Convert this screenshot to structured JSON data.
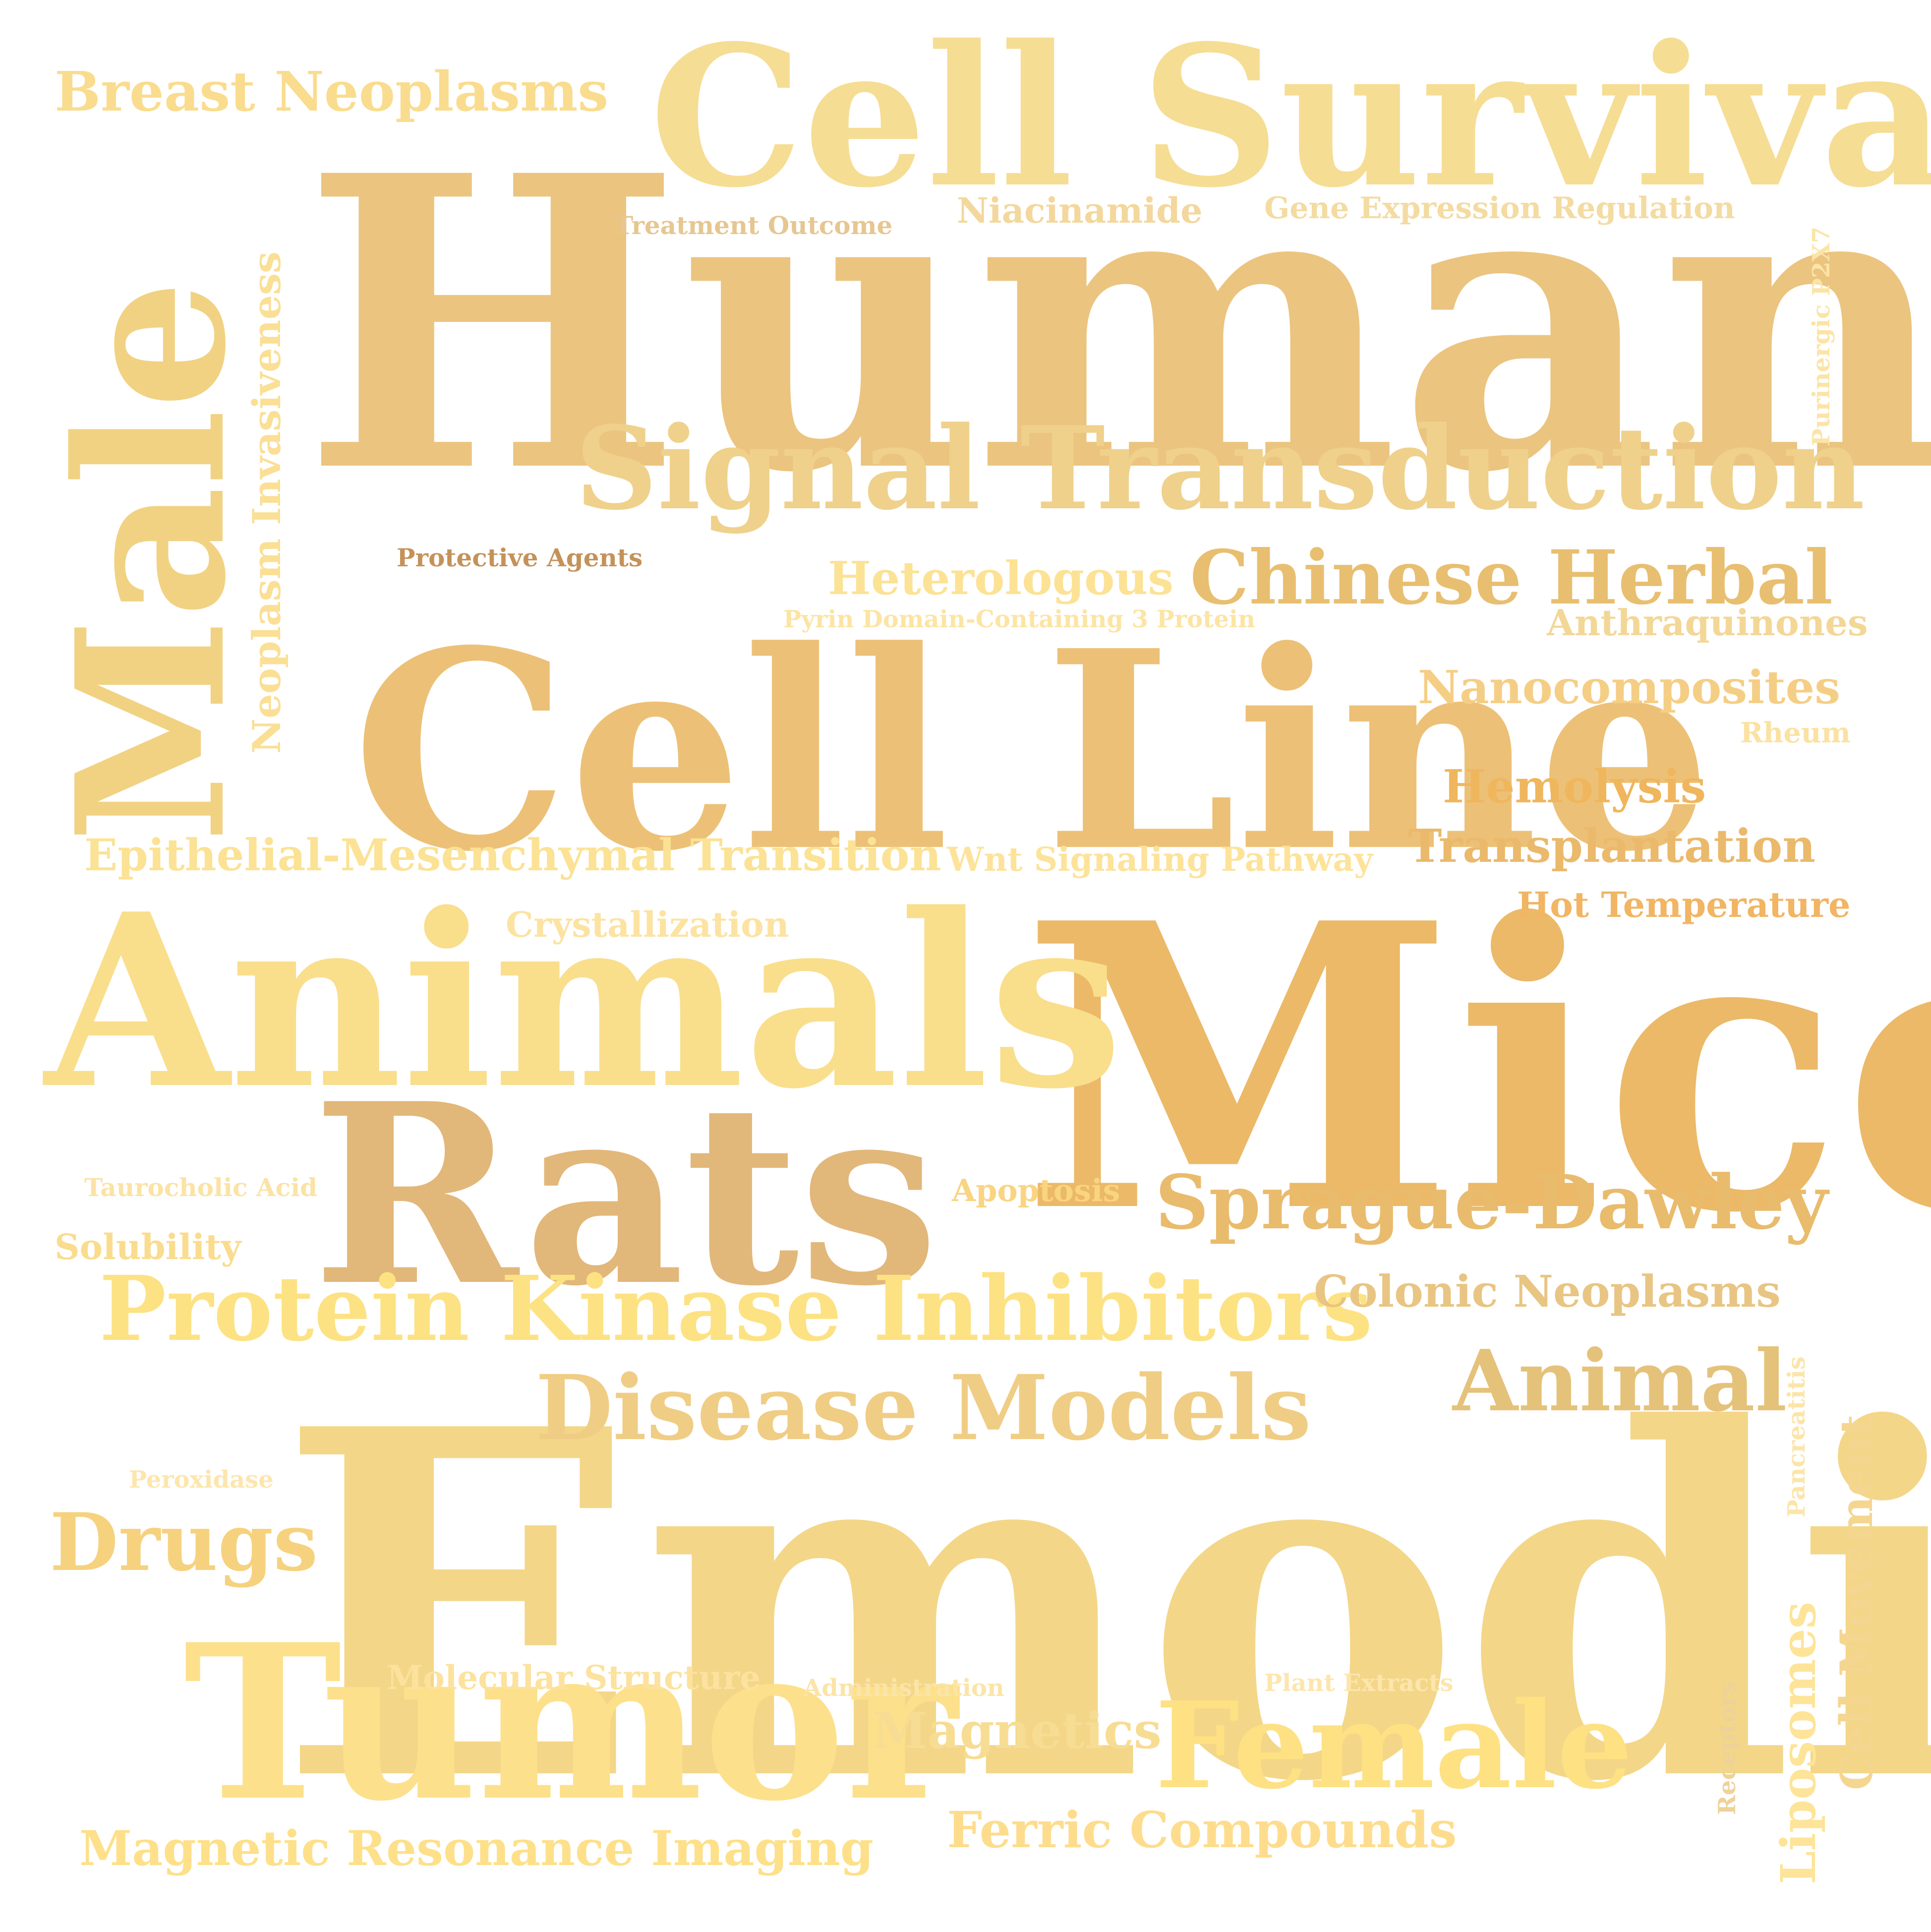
{
  "word_cloud": {
    "words": [
      {
        "text": "Emodin",
        "color": "#f3d688"
      },
      {
        "text": "Humans",
        "color": "#ebc47f"
      },
      {
        "text": "Mice",
        "color": "#ebb968"
      },
      {
        "text": "Cell Line",
        "color": "#ecc177"
      },
      {
        "text": "Animals",
        "color": "#f9de8c"
      },
      {
        "text": "Rats",
        "color": "#e2b77a"
      },
      {
        "text": "Tumor",
        "color": "#fde08b"
      },
      {
        "text": "Cell Survival",
        "color": "#f6dd94"
      },
      {
        "text": "Male",
        "color": "#f1d283"
      },
      {
        "text": "Signal Transduction",
        "color": "#efd18c"
      },
      {
        "text": "Protein Kinase Inhibitors",
        "color": "#fde283"
      },
      {
        "text": "Disease Models",
        "color": "#f0cd84"
      },
      {
        "text": "Female",
        "color": "#fde183"
      },
      {
        "text": "Sprague-Dawley",
        "color": "#e9bb6c"
      },
      {
        "text": "Chinese Herbal",
        "color": "#e8bf70"
      },
      {
        "text": "Animal",
        "color": "#e5c27a"
      },
      {
        "text": "Drugs",
        "color": "#f6d27f"
      },
      {
        "text": "Breast Neoplasms",
        "color": "#fadc8e"
      },
      {
        "text": "Epithelial-Mesenchymal Transition",
        "color": "#fbe294"
      },
      {
        "text": "Heterologous",
        "color": "#fce294"
      },
      {
        "text": "Colonic Neoplasms",
        "color": "#e8c582"
      },
      {
        "text": "Magnetic Resonance Imaging",
        "color": "#fde089"
      },
      {
        "text": "Ferric Compounds",
        "color": "#fddd8d"
      },
      {
        "text": "Magnetics",
        "color": "#f7dc93"
      },
      {
        "text": "Nanocomposites",
        "color": "#f5ce85"
      },
      {
        "text": "Transplantation",
        "color": "#eab96b"
      },
      {
        "text": "Hemolysis",
        "color": "#f0b65d"
      },
      {
        "text": "Neoplasm Invasiveness",
        "color": "#fadf95"
      },
      {
        "text": "Liposomes",
        "color": "#fde498"
      },
      {
        "text": "Cell Movement",
        "color": "#f5d690"
      },
      {
        "text": "Anthraquinones",
        "color": "#f3d796"
      },
      {
        "text": "Hot Temperature",
        "color": "#f1b563"
      },
      {
        "text": "Crystallization",
        "color": "#fce3a2"
      },
      {
        "text": "Niacinamide",
        "color": "#f3d79d"
      },
      {
        "text": "Gene Expression Regulation",
        "color": "#f4dba1"
      },
      {
        "text": "Wnt Signaling Pathway",
        "color": "#fde39a"
      },
      {
        "text": "Apoptosis",
        "color": "#f9d481"
      },
      {
        "text": "Solubility",
        "color": "#fadc8e"
      },
      {
        "text": "Molecular Structure",
        "color": "#fce29e"
      },
      {
        "text": "Pyrin Domain-Containing 3 Protein",
        "color": "#fce4a3"
      },
      {
        "text": "Treatment Outcome",
        "color": "#e6c691"
      },
      {
        "text": "Protective Agents",
        "color": "#c49259"
      },
      {
        "text": "Taurocholic Acid",
        "color": "#fbe3a5"
      },
      {
        "text": "Rheum",
        "color": "#fbe2a2"
      },
      {
        "text": "Peroxidase",
        "color": "#fde6ad"
      },
      {
        "text": "Administration",
        "color": "#fbe4a8"
      },
      {
        "text": "Plant Extracts",
        "color": "#fde6ad"
      },
      {
        "text": "Pancreatitis",
        "color": "#fce5a9"
      },
      {
        "text": "Receptors",
        "color": "#eed299"
      },
      {
        "text": "Purinergic P2X7",
        "color": "#fbe4a6"
      }
    ]
  }
}
